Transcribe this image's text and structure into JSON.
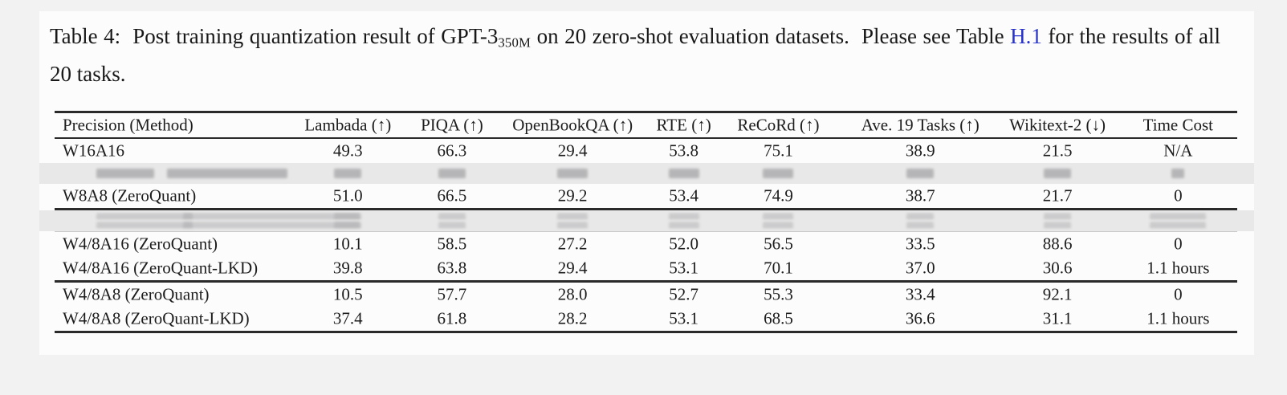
{
  "caption": {
    "label": "Table 4:",
    "text_before_sub": "  Post training quantization result of GPT-3",
    "subscript": "350M",
    "text_after_sub": " on 20 zero-shot evaluation datasets.  Please see Table ",
    "link_text": "H.1",
    "text_end": " for the results of all 20 tasks."
  },
  "table": {
    "headers": [
      "Precision (Method)",
      "Lambada (↑)",
      "PIQA (↑)",
      "OpenBookQA (↑)",
      "RTE (↑)",
      "ReCoRd (↑)",
      "Ave. 19 Tasks (↑)",
      "Wikitext-2 (↓)",
      "Time Cost"
    ],
    "rows": [
      {
        "type": "data",
        "cells": [
          "W16A16",
          "49.3",
          "66.3",
          "29.4",
          "53.8",
          "75.1",
          "38.9",
          "21.5",
          "N/A"
        ]
      },
      {
        "type": "redacted",
        "lines": 1
      },
      {
        "type": "data",
        "cells": [
          "W8A8 (ZeroQuant)",
          "51.0",
          "66.5",
          "29.2",
          "53.4",
          "74.9",
          "38.7",
          "21.7",
          "0"
        ]
      },
      {
        "type": "rule",
        "weight": "thick"
      },
      {
        "type": "redacted",
        "lines": 2
      },
      {
        "type": "rule",
        "weight": "faint"
      },
      {
        "type": "data",
        "cells": [
          "W4/8A16 (ZeroQuant)",
          "10.1",
          "58.5",
          "27.2",
          "52.0",
          "56.5",
          "33.5",
          "88.6",
          "0"
        ]
      },
      {
        "type": "data",
        "cells": [
          "W4/8A16 (ZeroQuant-LKD)",
          "39.8",
          "63.8",
          "29.4",
          "53.1",
          "70.1",
          "37.0",
          "30.6",
          "1.1 hours"
        ]
      },
      {
        "type": "rule",
        "weight": "sep"
      },
      {
        "type": "data",
        "cells": [
          "W4/8A8 (ZeroQuant)",
          "10.5",
          "57.7",
          "28.0",
          "52.7",
          "55.3",
          "33.4",
          "92.1",
          "0"
        ]
      },
      {
        "type": "data",
        "cells": [
          "W4/8A8 (ZeroQuant-LKD)",
          "37.4",
          "61.8",
          "28.2",
          "53.1",
          "68.5",
          "36.6",
          "31.1",
          "1.1 hours"
        ]
      }
    ]
  },
  "colors": {
    "page_bg": "#f2f2f3",
    "panel_bg": "#fcfcfc",
    "rule": "#2a2a2a",
    "link": "#2733cc",
    "redacted_band": "#e8e8e9",
    "text": "#1c1c1c"
  }
}
